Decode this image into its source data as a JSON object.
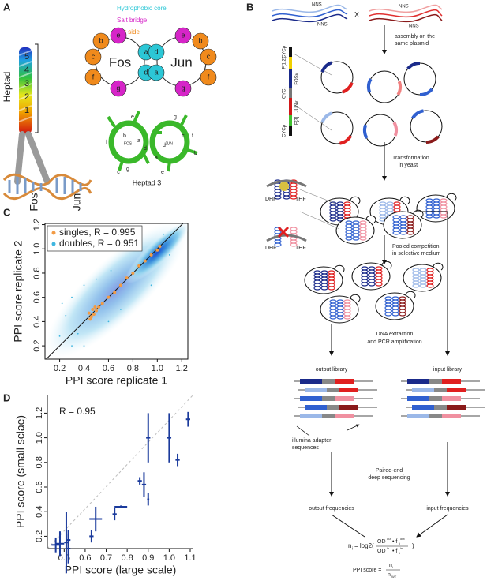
{
  "panels": {
    "a": {
      "label": "A",
      "legend": [
        "Hydrophobic core",
        "Salt bridge",
        "Far side"
      ],
      "heptad": "Heptad",
      "heptad_numbers": [
        "5",
        "4",
        "3",
        "2",
        "1"
      ],
      "fos": "Fos",
      "jun": "Jun",
      "wheel_fos": "Fos",
      "wheel_jun": "Jun",
      "wheel_letters_fos": [
        "b",
        "e",
        "c",
        "f",
        "g",
        "a",
        "d"
      ],
      "wheel_letters_jun": [
        "e",
        "b",
        "c",
        "f",
        "g",
        "d",
        "a"
      ],
      "struct_fos": "FOS",
      "struct_jun": "JUN",
      "struct_letters": [
        "f",
        "e",
        "b",
        "a",
        "d",
        "c",
        "g",
        "g",
        "c",
        "d",
        "a",
        "f",
        "b",
        "e"
      ],
      "heptad3": "Heptad 3"
    },
    "b": {
      "label": "B",
      "nns": "NNS",
      "cross": "X",
      "assembly": [
        "assembly on the",
        "same plasmid"
      ],
      "cassette": [
        "CYCp",
        "F[1,2]",
        "FOSv",
        "CYCt",
        "JUNv",
        "F[3]",
        "CYCp"
      ],
      "transformation": [
        "Transformation",
        "in yeast"
      ],
      "dhf": "DHF",
      "thf": "THF",
      "pooled": [
        "Pooled competition",
        "in selective medium"
      ],
      "dna": [
        "DNA extraction",
        "and PCR amplification"
      ],
      "output_library": "output library",
      "input_library": "input library",
      "illumina": [
        "illumina adapter",
        "sequences"
      ],
      "paired": [
        "Paired-end",
        "deep sequencing"
      ],
      "output_freq": "output frequencies",
      "input_freq": "input frequencies",
      "formula": {
        "n": "n",
        "i": "i",
        "eq": "= log2(",
        "od": "OD",
        "out": "out",
        "dot_f": "• f",
        "in": "in",
        "close": ")",
        "score": "PPI score =",
        "wt": "WT"
      }
    },
    "c": {
      "label": "C"
    },
    "d": {
      "label": "D"
    }
  },
  "chart_data": [
    {
      "type": "scatter",
      "xlabel": "PPI score replicate 1",
      "ylabel": "PPI score replicate 2",
      "xlim": [
        0.08,
        1.25
      ],
      "ylim": [
        0.09,
        1.21
      ],
      "xticks": [
        0.2,
        0.4,
        0.6,
        0.8,
        {
          "value": 1,
          "label": "1.0"
        },
        1.2
      ],
      "yticks": [
        0.2,
        0.4,
        0.6,
        0.8,
        {
          "value": 1,
          "label": "1.0"
        },
        1.2
      ],
      "legend": "upper left",
      "diagonal": true,
      "series": [
        {
          "name": "singles, R = 0.995",
          "color": "#f29b45",
          "x": [
            0.44,
            0.46,
            0.47,
            0.48,
            0.5,
            0.52,
            0.55,
            0.6,
            0.65,
            0.7,
            0.75,
            0.8,
            0.85,
            0.9,
            0.95,
            1.0,
            1.02,
            0.45,
            0.49
          ],
          "values": [
            0.47,
            0.44,
            0.5,
            0.46,
            0.49,
            0.52,
            0.55,
            0.6,
            0.64,
            0.7,
            0.76,
            0.8,
            0.86,
            0.9,
            0.95,
            0.99,
            1.02,
            0.42,
            0.52
          ]
        },
        {
          "name": "doubles, R = 0.951",
          "color": "#3fb6e0",
          "x": [
            0.2,
            0.25,
            0.3,
            0.35,
            0.4,
            0.6,
            0.7,
            0.5,
            0.3,
            1.1,
            0.95,
            0.22,
            0.85,
            0.62,
            1.05,
            0.4
          ],
          "values": [
            0.28,
            0.45,
            0.6,
            0.3,
            0.7,
            0.4,
            0.5,
            0.75,
            0.2,
            0.95,
            0.7,
            0.55,
            1.0,
            0.82,
            1.12,
            0.2
          ]
        }
      ]
    },
    {
      "type": "errorbar",
      "xlabel": "PPI score (large scale)",
      "ylabel": "PPI score (small sclae)",
      "annotation": "R = 0.95",
      "xlim": [
        0.42,
        1.115
      ],
      "ylim": [
        0.1,
        1.35
      ],
      "xticks": [
        0.5,
        0.6,
        0.7,
        0.8,
        0.9,
        {
          "value": 1,
          "label": "1.0"
        },
        1.1
      ],
      "yticks": [
        0.2,
        0.4,
        0.6,
        0.8,
        {
          "value": 1,
          "label": "1.0"
        },
        1.2
      ],
      "fit_line": true,
      "series": [
        {
          "color": "#1a3a9c",
          "x": [
            0.46,
            0.48,
            0.51,
            0.52,
            0.52,
            0.63,
            0.65,
            0.74,
            0.77,
            0.86,
            0.88,
            0.9,
            0.9,
            1.0,
            1.04,
            1.09
          ],
          "values": [
            0.13,
            0.14,
            0.15,
            0.1,
            0.17,
            0.2,
            0.34,
            0.38,
            0.44,
            0.65,
            0.62,
            1.0,
            0.5,
            1.0,
            0.82,
            1.15
          ],
          "xerr": [
            0.02,
            0.02,
            0.01,
            0.01,
            0.01,
            0.01,
            0.03,
            0.01,
            0.03,
            0.01,
            0.01,
            0.01,
            0.005,
            0.01,
            0.01,
            0.01
          ],
          "yerr": [
            0.06,
            0.1,
            0.25,
            0.12,
            0.08,
            0.05,
            0.1,
            0.05,
            0.01,
            0.03,
            0.1,
            0.2,
            0.05,
            0.2,
            0.05,
            0.06
          ]
        }
      ]
    }
  ]
}
